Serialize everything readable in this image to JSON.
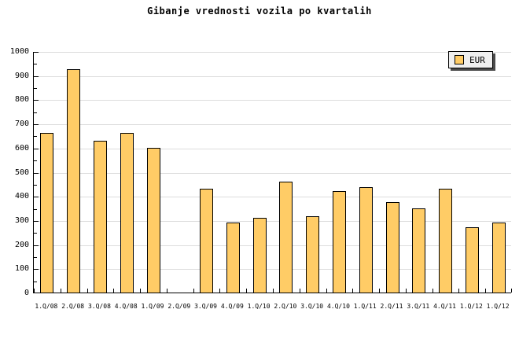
{
  "chart_data": {
    "type": "bar",
    "title": "Gibanje vrednosti vozila po kvartalih",
    "categories": [
      "1.Q/08",
      "2.Q/08",
      "3.Q/08",
      "4.Q/08",
      "1.Q/09",
      "2.Q/09",
      "3.Q/09",
      "4.Q/09",
      "1.Q/10",
      "2.Q/10",
      "3.Q/10",
      "4.Q/10",
      "1.Q/11",
      "2.Q/11",
      "3.Q/11",
      "4.Q/11",
      "1.Q/12",
      "1.Q/12"
    ],
    "series": [
      {
        "name": "EUR",
        "values": [
          660,
          925,
          630,
          660,
          600,
          null,
          430,
          290,
          310,
          460,
          315,
          420,
          435,
          375,
          350,
          430,
          270,
          290
        ]
      }
    ],
    "xlabel": "",
    "ylabel": "",
    "ylim": [
      0,
      1000
    ],
    "yticks": [
      0,
      100,
      200,
      300,
      400,
      500,
      600,
      700,
      800,
      900,
      1000
    ],
    "ytick_step": 100,
    "yminor_step": 50,
    "grid": true,
    "legend_position": "top-right",
    "colors": {
      "background": "#ffffff",
      "bar_fill": "#FFCC66",
      "bar_border": "#000000",
      "grid": "#dcdcdc",
      "axis": "#000000",
      "text": "#000000",
      "legend_bg": "#efefef",
      "legend_shadow": "#4a4a4a"
    }
  }
}
